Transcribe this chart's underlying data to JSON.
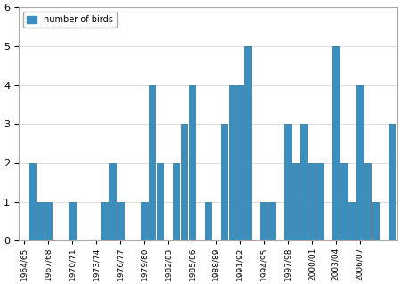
{
  "bar_values": [
    0,
    2,
    1,
    1,
    0,
    0,
    1,
    0,
    0,
    0,
    1,
    2,
    1,
    0,
    0,
    1,
    4,
    2,
    0,
    2,
    3,
    4,
    0,
    1,
    0,
    3,
    4,
    4,
    5,
    0,
    1,
    1,
    0,
    3,
    2,
    3,
    2,
    2,
    0,
    5,
    2,
    1,
    4,
    2,
    1,
    0,
    3
  ],
  "tick_positions": [
    0,
    3,
    6,
    9,
    12,
    15,
    18,
    21,
    24,
    27,
    30,
    33,
    36,
    39,
    42,
    45
  ],
  "tick_labels": [
    "1964/65",
    "1967/68",
    "1970/71",
    "1973/74",
    "1976/77",
    "1979/80",
    "1982/83",
    "1985/86",
    "1988/89",
    "1991/92",
    "1994/95",
    "1997/98",
    "2000/01",
    "2003/04",
    "2006/07",
    ""
  ],
  "bar_color": "#3a8fbf",
  "bar_edge_color": "#2a6f9a",
  "ylim": [
    0,
    6
  ],
  "yticks": [
    0,
    1,
    2,
    3,
    4,
    5,
    6
  ],
  "legend_label": "number of birds",
  "legend_color": "#3a8fbf"
}
